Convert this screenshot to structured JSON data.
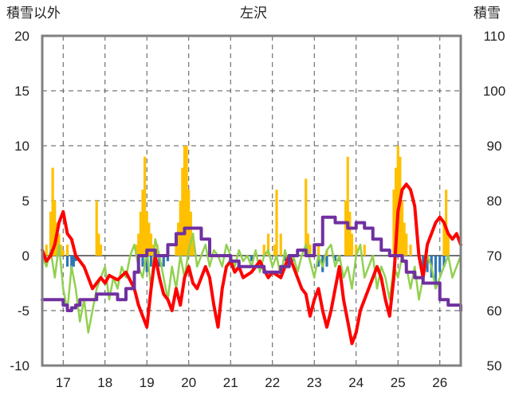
{
  "chart_data": {
    "type": "line",
    "title": "左沢",
    "left_axis_label": "積雪以外",
    "right_axis_label": "積雪",
    "left_ylim": [
      -10,
      20
    ],
    "left_yticks": [
      -10,
      -5,
      0,
      5,
      10,
      15,
      20
    ],
    "right_ylim": [
      50,
      110
    ],
    "right_yticks": [
      50,
      60,
      70,
      80,
      90,
      100,
      110
    ],
    "xlim": [
      16.5,
      26.5
    ],
    "xticks": [
      17,
      18,
      19,
      20,
      21,
      22,
      23,
      24,
      25,
      26
    ],
    "grid": true,
    "colors": {
      "temp_max": "#ff0000",
      "temp_min": "#92d050",
      "precip": "#ffc000",
      "negative": "#2e75b6",
      "snow": "#7030a0",
      "axis": "#808080",
      "grid": "#555555"
    },
    "series": [
      {
        "role": "red-line",
        "axis": "left",
        "x": [
          16.5,
          16.6,
          16.7,
          16.8,
          16.9,
          17.0,
          17.1,
          17.2,
          17.3,
          17.5,
          17.7,
          17.9,
          18.0,
          18.1,
          18.3,
          18.5,
          18.7,
          18.8,
          18.9,
          19.0,
          19.1,
          19.2,
          19.3,
          19.4,
          19.5,
          19.6,
          19.7,
          19.8,
          19.9,
          20.0,
          20.1,
          20.2,
          20.3,
          20.4,
          20.5,
          20.6,
          20.7,
          20.8,
          20.9,
          21.0,
          21.1,
          21.2,
          21.3,
          21.5,
          21.7,
          21.9,
          22.0,
          22.2,
          22.4,
          22.5,
          22.6,
          22.7,
          22.8,
          22.9,
          23.0,
          23.1,
          23.2,
          23.3,
          23.4,
          23.5,
          23.6,
          23.7,
          23.8,
          23.9,
          24.0,
          24.1,
          24.3,
          24.5,
          24.6,
          24.7,
          24.8,
          24.9,
          25.0,
          25.1,
          25.2,
          25.3,
          25.4,
          25.5,
          25.6,
          25.7,
          25.8,
          25.9,
          26.0,
          26.1,
          26.2,
          26.3,
          26.4,
          26.5
        ],
        "y": [
          0.5,
          -0.5,
          0,
          1,
          3,
          4,
          2,
          1.5,
          0,
          -1,
          -3,
          -2,
          -2.5,
          -1.8,
          -2.2,
          -1.5,
          -3,
          -4.5,
          -5.5,
          -6.5,
          -3,
          0,
          -2,
          -3.5,
          -4,
          -5,
          -3,
          -4.5,
          -2,
          -1,
          -2.5,
          -3,
          -2,
          -1,
          -2,
          -4.5,
          -6.5,
          -3,
          -1,
          -0.5,
          -1.5,
          -1,
          -2,
          -1.5,
          -0.5,
          -2,
          -1.5,
          -2,
          0,
          -1,
          -2,
          -3,
          -3.5,
          -5.5,
          -4,
          -3,
          -5,
          -6.5,
          -5,
          -3,
          -1,
          -4,
          -6,
          -8,
          -7,
          -5,
          -3,
          -1,
          -2,
          -4,
          -5.5,
          -2,
          4,
          6,
          6.5,
          6,
          4.5,
          0,
          -2,
          1,
          2,
          3,
          3.5,
          3,
          2,
          1.5,
          2,
          1
        ]
      },
      {
        "role": "green-line",
        "axis": "left",
        "x": [
          16.5,
          16.6,
          16.7,
          16.8,
          16.9,
          17.0,
          17.1,
          17.2,
          17.3,
          17.4,
          17.5,
          17.6,
          17.7,
          17.8,
          17.9,
          18.0,
          18.1,
          18.2,
          18.3,
          18.4,
          18.5,
          18.6,
          18.7,
          18.8,
          18.9,
          19.0,
          19.1,
          19.2,
          19.3,
          19.4,
          19.5,
          19.6,
          19.7,
          19.8,
          19.9,
          20.0,
          20.1,
          20.2,
          20.3,
          20.4,
          20.5,
          20.6,
          20.7,
          20.8,
          20.9,
          21.0,
          21.1,
          21.2,
          21.3,
          21.4,
          21.5,
          21.6,
          21.7,
          21.8,
          21.9,
          22.0,
          22.1,
          22.2,
          22.3,
          22.4,
          22.5,
          22.6,
          22.7,
          22.8,
          22.9,
          23.0,
          23.1,
          23.2,
          23.3,
          23.4,
          23.5,
          23.6,
          23.7,
          23.8,
          23.9,
          24.0,
          24.1,
          24.2,
          24.3,
          24.4,
          24.5,
          24.6,
          24.7,
          24.8,
          24.9,
          25.0,
          25.1,
          25.2,
          25.3,
          25.4,
          25.5,
          25.6,
          25.7,
          25.8,
          25.9,
          26.0,
          26.1,
          26.2,
          26.3,
          26.4,
          26.5
        ],
        "y": [
          0,
          -1,
          0.5,
          -2,
          1,
          -3,
          -5,
          -1,
          -3,
          -6,
          -4,
          -7,
          -5,
          -3,
          -2,
          -1,
          -4,
          -2,
          -3,
          -1,
          -2,
          0,
          1,
          -1,
          -2,
          0.5,
          -3,
          1.5,
          0,
          -2,
          -4,
          -1,
          -3,
          0,
          -2,
          0.5,
          2,
          -1,
          0,
          1,
          -1,
          0.5,
          0,
          -1,
          1,
          0,
          -1,
          0.5,
          -0.5,
          0,
          -1,
          0.5,
          -1.5,
          0,
          0.5,
          -1,
          0,
          -2,
          0.5,
          -1,
          0,
          -1.5,
          0,
          1,
          -0.5,
          -2,
          0,
          -1,
          0.5,
          1,
          -1,
          0,
          -2,
          -1,
          -3,
          0,
          1,
          -2,
          -1,
          0,
          -3,
          -1,
          -2,
          -4,
          -1,
          -2,
          0,
          -1,
          -3,
          -1,
          -4,
          -2,
          0,
          -1,
          -3,
          -2,
          -1,
          0,
          -2,
          -1,
          0
        ]
      },
      {
        "role": "purple-line",
        "axis": "right",
        "x": [
          16.5,
          16.8,
          17.0,
          17.1,
          17.2,
          17.3,
          17.4,
          17.6,
          17.8,
          18.0,
          18.3,
          18.5,
          18.7,
          18.8,
          19.0,
          19.2,
          19.5,
          19.7,
          19.9,
          20.0,
          20.3,
          20.5,
          20.8,
          21.0,
          21.2,
          21.5,
          21.8,
          22.0,
          22.2,
          22.4,
          22.6,
          22.8,
          23.0,
          23.2,
          23.5,
          23.8,
          24.0,
          24.2,
          24.4,
          24.6,
          24.8,
          25.0,
          25.1,
          25.2,
          25.4,
          25.6,
          25.8,
          26.0,
          26.2,
          26.4,
          26.5
        ],
        "y": [
          62,
          62,
          61,
          60,
          60.5,
          61,
          62,
          62,
          63,
          63,
          62,
          64,
          67,
          70,
          71,
          70,
          72,
          74,
          75,
          75,
          73,
          70,
          70,
          69,
          68,
          68,
          67,
          67,
          68,
          70,
          71,
          70,
          72,
          77,
          76,
          75,
          76,
          75,
          73,
          71,
          70,
          70,
          69,
          67,
          66,
          65,
          65,
          62,
          61,
          61,
          60
        ]
      },
      {
        "role": "yellow-bars",
        "axis": "left",
        "type": "bar",
        "x": [
          16.6,
          16.7,
          16.75,
          16.8,
          16.85,
          16.9,
          16.95,
          17.0,
          17.1,
          17.8,
          17.85,
          17.9,
          18.75,
          18.8,
          18.85,
          18.9,
          18.95,
          19.0,
          19.05,
          19.1,
          19.15,
          19.2,
          19.25,
          19.7,
          19.75,
          19.8,
          19.85,
          19.9,
          19.95,
          20.0,
          20.05,
          20.1,
          21.8,
          21.9,
          22.05,
          22.1,
          22.2,
          22.8,
          22.85,
          22.9,
          23.1,
          23.3,
          23.75,
          23.8,
          23.85,
          23.9,
          24.0,
          24.2,
          24.9,
          24.95,
          25.0,
          25.05,
          25.1,
          25.15,
          25.2,
          25.3,
          26.1,
          26.15,
          26.2
        ],
        "y": [
          1,
          4,
          8,
          5,
          3,
          2,
          1,
          0.5,
          1,
          5,
          2,
          1,
          1,
          2,
          4,
          6,
          9,
          4,
          3,
          2,
          1,
          0.5,
          1,
          1,
          3,
          5,
          8,
          10,
          10,
          6,
          4,
          2,
          1,
          2,
          1,
          6,
          2,
          7,
          2,
          1,
          1,
          0.5,
          5,
          9,
          4,
          2,
          1,
          1,
          6,
          8,
          10,
          9,
          5,
          3,
          2,
          1,
          3,
          6,
          2
        ]
      },
      {
        "role": "blue-bars",
        "axis": "left",
        "type": "bar",
        "x": [
          17.1,
          17.2,
          17.25,
          17.3,
          18.8,
          18.9,
          19.0,
          19.1,
          19.2,
          19.3,
          19.4,
          19.5,
          21.5,
          22.3,
          22.5,
          23.1,
          23.2,
          23.3,
          23.5,
          23.6,
          25.6,
          25.7,
          25.8,
          25.9,
          26.0,
          26.1
        ],
        "y": [
          -1,
          -1.5,
          -1,
          -0.5,
          -0.5,
          -1,
          -1.5,
          -1,
          -0.5,
          -1,
          -1,
          -0.5,
          -0.5,
          -0.5,
          -0.5,
          -1,
          -1.5,
          -1,
          -0.5,
          -0.5,
          -1,
          -1.5,
          -2,
          -3,
          -1.5,
          -1
        ]
      }
    ]
  }
}
